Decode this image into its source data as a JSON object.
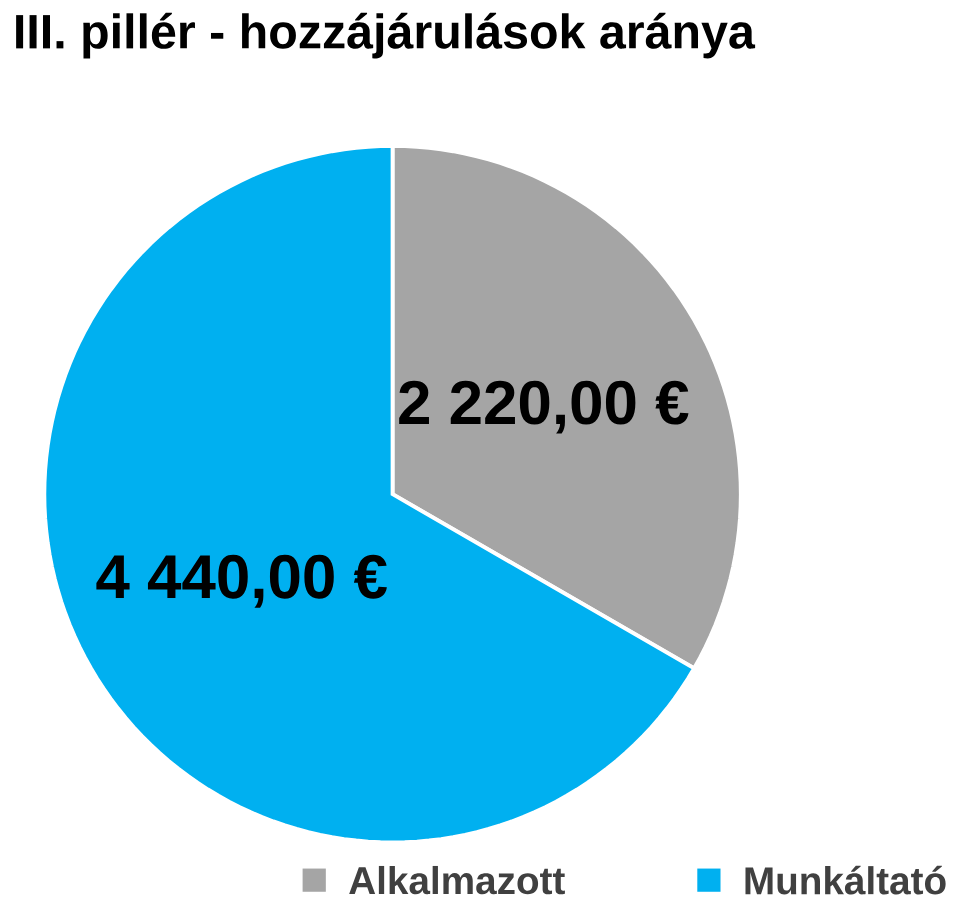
{
  "chart_data": {
    "type": "pie",
    "title": "III. pillér - hozzájárulások aránya",
    "categories": [
      "Alkalmazott",
      "Munkáltató"
    ],
    "values": [
      2220,
      4440
    ],
    "colors": [
      "#a5a5a5",
      "#00b0f0"
    ],
    "value_labels": [
      "2 220,00 €",
      "4 440,00 €"
    ],
    "legend": "bottom"
  }
}
